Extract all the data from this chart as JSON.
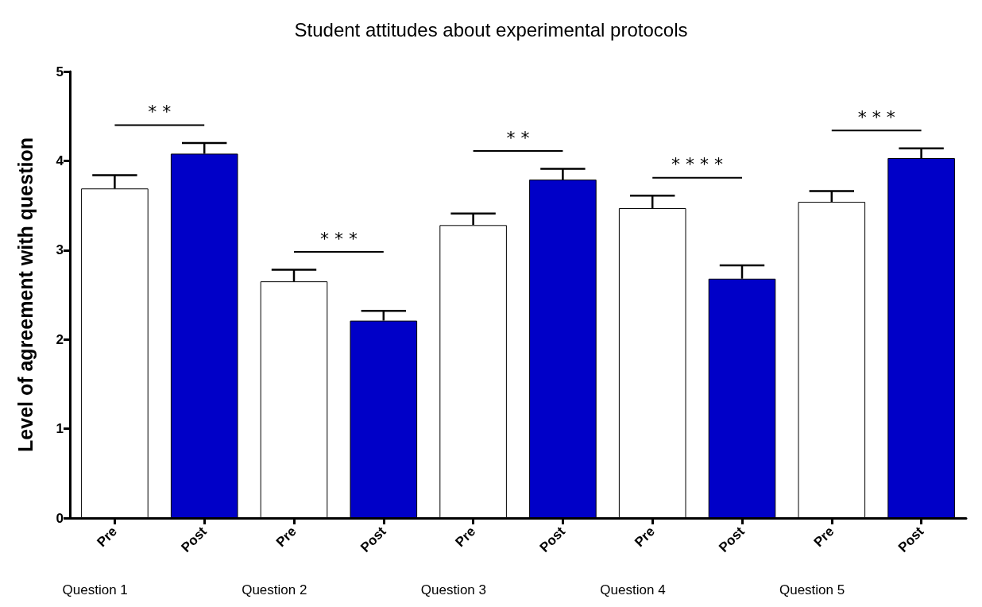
{
  "chart_data": {
    "type": "bar",
    "title": "Student attitudes about experimental protocols",
    "ylabel": "Level of agreement with question",
    "categories": [
      "Pre",
      "Post",
      "Pre",
      "Post",
      "Pre",
      "Post",
      "Pre",
      "Post",
      "Pre",
      "Post"
    ],
    "values": [
      3.69,
      4.08,
      2.65,
      2.21,
      3.28,
      3.79,
      3.47,
      2.68,
      3.54,
      4.03
    ],
    "colors": [
      "#ffffff",
      "#0000c8",
      "#ffffff",
      "#0000c8",
      "#ffffff",
      "#0000c8",
      "#ffffff",
      "#0000c8",
      "#ffffff",
      "#0000c8"
    ],
    "errors": [
      [
        3.69,
        3.84
      ],
      [
        4.08,
        4.2
      ],
      [
        2.65,
        2.78
      ],
      [
        2.21,
        2.32
      ],
      [
        3.28,
        3.41
      ],
      [
        3.79,
        3.91
      ],
      [
        3.47,
        3.61
      ],
      [
        2.68,
        2.83
      ],
      [
        3.54,
        3.66
      ],
      [
        4.03,
        4.14
      ]
    ],
    "ylim": [
      0,
      5
    ],
    "yticks": [
      0,
      1,
      2,
      3,
      4,
      5
    ],
    "grid": false,
    "annotations": [
      "Question 1",
      "Question 2",
      "Question 3",
      "Question 4",
      "Question 5",
      "* *",
      "* * *",
      "* *",
      "* * * *",
      "* * *"
    ]
  }
}
